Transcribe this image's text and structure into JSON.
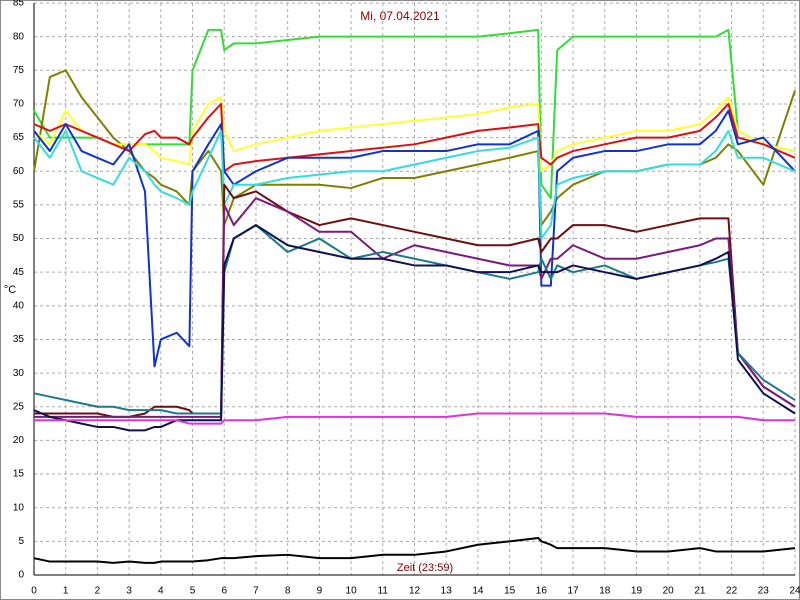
{
  "chart_data": {
    "type": "line",
    "title": "Mi, 07.04.2021",
    "y_label": "°C",
    "x_label": "Zeit (23:59)",
    "x": [
      0,
      0.5,
      1,
      1.5,
      2,
      2.5,
      3,
      3.5,
      3.8,
      4,
      4.5,
      4.9,
      5,
      5.5,
      5.9,
      6,
      6.3,
      7,
      8,
      9,
      10,
      11,
      12,
      13,
      14,
      15,
      15.9,
      16,
      16.3,
      16.5,
      17,
      18,
      19,
      20,
      21,
      21.5,
      21.9,
      22.2,
      23,
      24
    ],
    "xlim": [
      0,
      24
    ],
    "ylim": [
      0,
      85
    ],
    "xticks": [
      0,
      1,
      2,
      3,
      4,
      5,
      6,
      7,
      8,
      9,
      10,
      11,
      12,
      13,
      14,
      15,
      16,
      17,
      18,
      19,
      20,
      21,
      22,
      23,
      24
    ],
    "yticks": [
      0,
      5,
      10,
      15,
      20,
      25,
      30,
      35,
      40,
      45,
      50,
      55,
      60,
      65,
      70,
      75,
      80,
      85
    ],
    "grid": true,
    "series": [
      {
        "color": "#33dd33",
        "values": [
          69,
          65,
          65,
          65,
          65,
          64,
          64,
          64,
          64,
          64,
          64,
          64,
          75,
          81,
          81,
          78,
          79,
          79,
          79.5,
          80,
          80,
          80,
          80,
          80,
          80,
          80.5,
          81,
          58,
          56,
          78,
          80,
          80,
          80,
          80,
          80,
          80,
          81,
          66,
          64,
          63
        ]
      },
      {
        "color": "#808000",
        "values": [
          60,
          74,
          75,
          71,
          68,
          65,
          63,
          60,
          59,
          58,
          57,
          55,
          60,
          63,
          60,
          52,
          56,
          58,
          58,
          58,
          57.5,
          59,
          59,
          60,
          61,
          62,
          63,
          52,
          54,
          56,
          58,
          60,
          60,
          61,
          61,
          62,
          64,
          63,
          58,
          72
        ]
      },
      {
        "color": "#ffff33",
        "values": [
          66,
          64,
          69,
          66,
          65,
          64,
          64,
          64,
          63,
          62,
          61.5,
          61,
          66,
          70,
          71,
          66,
          63,
          64,
          65,
          66,
          66.5,
          67,
          67.5,
          68,
          68.5,
          69.5,
          70,
          60,
          61,
          63,
          64,
          65,
          66,
          66,
          67,
          69,
          71,
          66,
          64,
          63
        ]
      },
      {
        "color": "#dd1111",
        "values": [
          67,
          66,
          67,
          66,
          65,
          64,
          63,
          65.5,
          66,
          65,
          65,
          64,
          65,
          68,
          70,
          60,
          61,
          61.5,
          62,
          62.5,
          63,
          63.5,
          64,
          65,
          66,
          66.5,
          67,
          62,
          61,
          62,
          63,
          64,
          65,
          65,
          66,
          68,
          70,
          65,
          64,
          62
        ]
      },
      {
        "color": "#1133cc",
        "values": [
          66,
          63,
          67,
          63,
          62,
          61,
          64,
          57,
          31,
          35,
          36,
          34,
          60,
          64,
          67,
          60,
          58,
          60,
          62,
          62,
          62,
          63,
          63,
          63,
          64,
          64,
          66,
          43,
          43,
          60,
          62,
          63,
          63,
          64,
          64,
          66,
          69,
          64,
          65,
          60
        ]
      },
      {
        "color": "#33dddd",
        "values": [
          65,
          62,
          66,
          60,
          59,
          58,
          62,
          60,
          58,
          57,
          56,
          55,
          57,
          62,
          66,
          55,
          58,
          58,
          59,
          59.5,
          60,
          60,
          61,
          62,
          63,
          63.5,
          65,
          50,
          52,
          58,
          59,
          60,
          60,
          61,
          61,
          63,
          66,
          62,
          62,
          60
        ]
      },
      {
        "color": "#6b0f0f",
        "values": [
          24,
          24,
          24,
          24,
          24,
          23.5,
          23.5,
          24,
          25,
          25,
          25,
          24.5,
          24,
          24,
          24,
          58,
          56,
          57,
          54,
          52,
          53,
          52,
          51,
          50,
          49,
          49,
          50,
          48,
          50,
          50,
          52,
          52,
          51,
          52,
          53,
          53,
          53,
          33,
          28,
          25
        ]
      },
      {
        "color": "#7a1a7a",
        "values": [
          23.5,
          23.5,
          23.5,
          23.5,
          23.5,
          23.5,
          23.5,
          23.5,
          23.5,
          23.5,
          23.5,
          23.5,
          23.5,
          23.5,
          23.5,
          55,
          52,
          56,
          54,
          51,
          51,
          47,
          49,
          48,
          47,
          46,
          46,
          44,
          47,
          47,
          49,
          47,
          47,
          48,
          49,
          50,
          50,
          33,
          28,
          25
        ]
      },
      {
        "color": "#1a7a8a",
        "values": [
          27,
          26.5,
          26,
          25.5,
          25,
          25,
          24.5,
          24.5,
          24.5,
          24.5,
          24,
          24,
          24,
          24,
          24,
          45,
          50,
          52,
          48,
          50,
          47,
          48,
          47,
          46,
          45,
          44,
          45,
          47,
          44,
          46,
          45,
          46,
          44,
          45,
          46,
          46.5,
          47,
          33,
          29,
          26
        ]
      },
      {
        "color": "#101050",
        "values": [
          24.5,
          23.5,
          23,
          22.5,
          22,
          22,
          21.5,
          21.5,
          22,
          22,
          23,
          23,
          23,
          23,
          23,
          46,
          50,
          52,
          49,
          48,
          47,
          47,
          46,
          46,
          45,
          45,
          46,
          45,
          45,
          45,
          46,
          45,
          44,
          45,
          46,
          47,
          48,
          32,
          27,
          24
        ]
      },
      {
        "color": "#dd33dd",
        "values": [
          23,
          23,
          23,
          23,
          23,
          23,
          23,
          23,
          23,
          23,
          23,
          22.5,
          22.5,
          22.5,
          22.5,
          23,
          23,
          23,
          23.5,
          23.5,
          23.5,
          23.5,
          23.5,
          23.5,
          24,
          24,
          24,
          24,
          24,
          24,
          24,
          24,
          23.5,
          23.5,
          23.5,
          23.5,
          23.5,
          23.5,
          23,
          23
        ]
      },
      {
        "color": "#000000",
        "values": [
          2.5,
          2,
          2,
          2,
          2,
          1.8,
          2,
          1.8,
          1.8,
          2,
          2,
          2,
          2,
          2.2,
          2.5,
          2.5,
          2.5,
          2.8,
          3,
          2.5,
          2.5,
          3,
          3,
          3.5,
          4.5,
          5,
          5.5,
          5,
          4.5,
          4,
          4,
          4,
          3.5,
          3.5,
          4,
          3.5,
          3.5,
          3.5,
          3.5,
          4
        ]
      }
    ]
  }
}
